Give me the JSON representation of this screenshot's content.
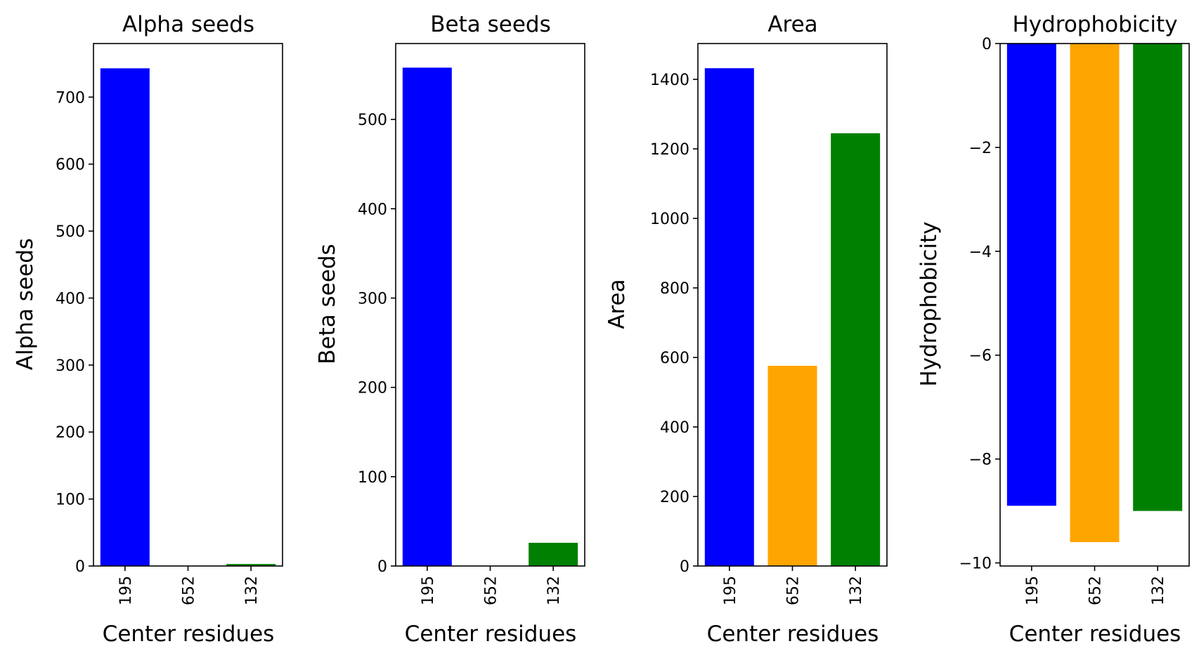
{
  "colors": {
    "195": "#0000ff",
    "652": "#ffa500",
    "132": "#008000"
  },
  "chart_data": [
    {
      "type": "bar",
      "title": "Alpha seeds",
      "xlabel": "Center residues",
      "ylabel": "Alpha seeds",
      "categories": [
        "195",
        "652",
        "132"
      ],
      "values": [
        743,
        0,
        3
      ],
      "ylim": [
        0,
        780
      ],
      "yticks": [
        0,
        100,
        200,
        300,
        400,
        500,
        600,
        700
      ],
      "ytick_labels": [
        "0",
        "100",
        "200",
        "300",
        "400",
        "500",
        "600",
        "700"
      ]
    },
    {
      "type": "bar",
      "title": "Beta seeds",
      "xlabel": "Center residues",
      "ylabel": "Beta seeds",
      "categories": [
        "195",
        "652",
        "132"
      ],
      "values": [
        558,
        0,
        26
      ],
      "ylim": [
        0,
        585
      ],
      "yticks": [
        0,
        100,
        200,
        300,
        400,
        500
      ],
      "ytick_labels": [
        "0",
        "100",
        "200",
        "300",
        "400",
        "500"
      ]
    },
    {
      "type": "bar",
      "title": "Area",
      "xlabel": "Center residues",
      "ylabel": "Area",
      "categories": [
        "195",
        "652",
        "132"
      ],
      "values": [
        1432,
        576,
        1245
      ],
      "ylim": [
        0,
        1503
      ],
      "yticks": [
        0,
        200,
        400,
        600,
        800,
        1000,
        1200,
        1400
      ],
      "ytick_labels": [
        "0",
        "200",
        "400",
        "600",
        "800",
        "1000",
        "1200",
        "1400"
      ]
    },
    {
      "type": "bar",
      "title": "Hydrophobicity",
      "xlabel": "Center residues",
      "ylabel": "Hydrophobicity",
      "categories": [
        "195",
        "652",
        "132"
      ],
      "values": [
        -8.9,
        -9.6,
        -9.0
      ],
      "ylim": [
        -10.06,
        0
      ],
      "yticks": [
        0,
        -2,
        -4,
        -6,
        -8,
        -10
      ],
      "ytick_labels": [
        "0",
        "−2",
        "−4",
        "−6",
        "−8",
        "−10"
      ]
    }
  ]
}
